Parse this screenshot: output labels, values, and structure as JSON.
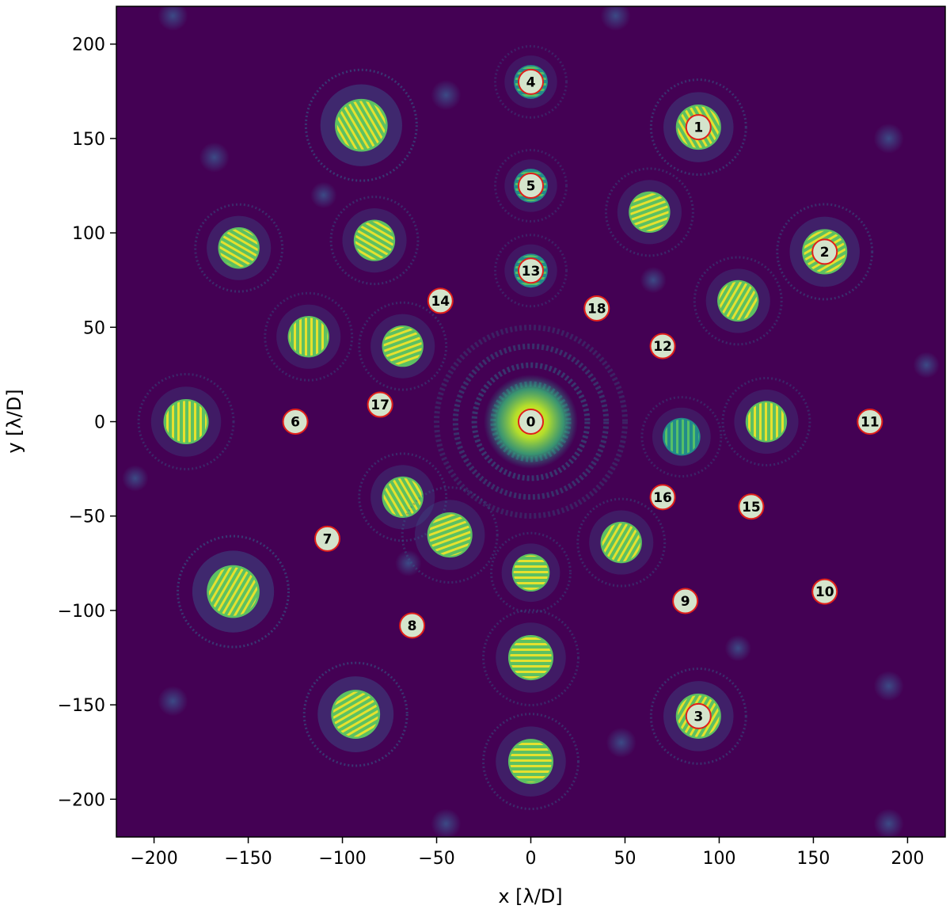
{
  "chart_data": {
    "type": "heatmap",
    "title": "",
    "xlabel": "x [λ/D]",
    "ylabel": "y [λ/D]",
    "xlim": [
      -220,
      220
    ],
    "ylim": [
      -220,
      220
    ],
    "xticks": [
      -200,
      -150,
      -100,
      -50,
      0,
      50,
      100,
      150,
      200
    ],
    "yticks": [
      -200,
      -150,
      -100,
      -50,
      0,
      50,
      100,
      150,
      200
    ],
    "xtick_labels": [
      "−200",
      "−150",
      "−100",
      "−50",
      "0",
      "50",
      "100",
      "150",
      "200"
    ],
    "ytick_labels": [
      "−200",
      "−150",
      "−100",
      "−50",
      "0",
      "50",
      "100",
      "150",
      "200"
    ],
    "colormap": "viridis",
    "grid": false,
    "background_color": "#440154",
    "marker_fill": "#d4e4cc",
    "marker_edge": "#e0201a",
    "markers": [
      {
        "label": "0",
        "x": 0,
        "y": 0
      },
      {
        "label": "1",
        "x": 89,
        "y": 156
      },
      {
        "label": "2",
        "x": 156,
        "y": 90
      },
      {
        "label": "3",
        "x": 89,
        "y": -156
      },
      {
        "label": "4",
        "x": 0,
        "y": 180
      },
      {
        "label": "5",
        "x": 0,
        "y": 125
      },
      {
        "label": "6",
        "x": -125,
        "y": 0
      },
      {
        "label": "7",
        "x": -108,
        "y": -62
      },
      {
        "label": "8",
        "x": -63,
        "y": -108
      },
      {
        "label": "9",
        "x": 82,
        "y": -95
      },
      {
        "label": "10",
        "x": 156,
        "y": -90
      },
      {
        "label": "11",
        "x": 180,
        "y": 0
      },
      {
        "label": "12",
        "x": 70,
        "y": 40
      },
      {
        "label": "13",
        "x": 0,
        "y": 80
      },
      {
        "label": "14",
        "x": -48,
        "y": 64
      },
      {
        "label": "15",
        "x": 117,
        "y": -45
      },
      {
        "label": "16",
        "x": 70,
        "y": -40
      },
      {
        "label": "17",
        "x": -80,
        "y": 9
      },
      {
        "label": "18",
        "x": 35,
        "y": 60
      }
    ],
    "bright_spots": [
      {
        "x": -90,
        "y": 157,
        "r": 14,
        "intensity": 0.95,
        "stripe_angle": -30
      },
      {
        "x": -158,
        "y": -90,
        "r": 14,
        "intensity": 0.95,
        "stripe_angle": 30
      },
      {
        "x": -93,
        "y": -155,
        "r": 13,
        "intensity": 0.9,
        "stripe_angle": 60
      },
      {
        "x": 89,
        "y": 156,
        "r": 12,
        "intensity": 0.75,
        "stripe_angle": -30
      },
      {
        "x": 156,
        "y": 90,
        "r": 12,
        "intensity": 0.7,
        "stripe_angle": 60
      },
      {
        "x": 89,
        "y": -156,
        "r": 12,
        "intensity": 0.7,
        "stripe_angle": 30
      },
      {
        "x": -155,
        "y": 92,
        "r": 11,
        "intensity": 0.6,
        "stripe_angle": -60
      },
      {
        "x": -83,
        "y": 96,
        "r": 11,
        "intensity": 0.55,
        "stripe_angle": -60
      },
      {
        "x": -118,
        "y": 45,
        "r": 11,
        "intensity": 0.45,
        "stripe_angle": 0
      },
      {
        "x": -68,
        "y": 40,
        "r": 11,
        "intensity": 0.5,
        "stripe_angle": 70
      },
      {
        "x": -183,
        "y": 0,
        "r": 12,
        "intensity": 0.5,
        "stripe_angle": 0
      },
      {
        "x": -68,
        "y": -40,
        "r": 11,
        "intensity": 0.55,
        "stripe_angle": -30
      },
      {
        "x": -43,
        "y": -60,
        "r": 12,
        "intensity": 0.5,
        "stripe_angle": 70
      },
      {
        "x": 48,
        "y": -64,
        "r": 11,
        "intensity": 0.5,
        "stripe_angle": 30
      },
      {
        "x": 0,
        "y": -80,
        "r": 10,
        "intensity": 0.45,
        "stripe_angle": 90
      },
      {
        "x": 0,
        "y": -125,
        "r": 12,
        "intensity": 0.5,
        "stripe_angle": 90
      },
      {
        "x": 0,
        "y": -180,
        "r": 12,
        "intensity": 0.6,
        "stripe_angle": 90
      },
      {
        "x": 63,
        "y": 111,
        "r": 11,
        "intensity": 0.5,
        "stripe_angle": 70
      },
      {
        "x": 110,
        "y": 64,
        "r": 11,
        "intensity": 0.5,
        "stripe_angle": 30
      },
      {
        "x": 80,
        "y": -8,
        "r": 10,
        "intensity": 0.4,
        "stripe_angle": 0
      },
      {
        "x": 125,
        "y": 0,
        "r": 11,
        "intensity": 0.45,
        "stripe_angle": 0
      },
      {
        "x": 0,
        "y": 180,
        "r": 9,
        "intensity": 0.35,
        "stripe_angle": 90
      },
      {
        "x": 0,
        "y": 125,
        "r": 9,
        "intensity": 0.35,
        "stripe_angle": 90
      },
      {
        "x": 0,
        "y": 80,
        "r": 9,
        "intensity": 0.35,
        "stripe_angle": 90
      }
    ],
    "faint_spots": [
      {
        "x": -190,
        "y": 215,
        "r": 8
      },
      {
        "x": 45,
        "y": 215,
        "r": 8
      },
      {
        "x": -45,
        "y": 173,
        "r": 8
      },
      {
        "x": -168,
        "y": 140,
        "r": 8
      },
      {
        "x": 190,
        "y": 150,
        "r": 8
      },
      {
        "x": 190,
        "y": -140,
        "r": 8
      },
      {
        "x": -190,
        "y": -148,
        "r": 8
      },
      {
        "x": 48,
        "y": -170,
        "r": 8
      },
      {
        "x": -45,
        "y": -213,
        "r": 8
      },
      {
        "x": 190,
        "y": -213,
        "r": 8
      },
      {
        "x": 210,
        "y": 30,
        "r": 7
      },
      {
        "x": -210,
        "y": -30,
        "r": 7
      },
      {
        "x": 65,
        "y": 75,
        "r": 7
      },
      {
        "x": -65,
        "y": -75,
        "r": 7
      },
      {
        "x": 110,
        "y": -120,
        "r": 7
      },
      {
        "x": -110,
        "y": 120,
        "r": 7
      }
    ],
    "rings": [
      {
        "r": 20,
        "opacity": 0.5
      },
      {
        "r": 30,
        "opacity": 0.45
      },
      {
        "r": 40,
        "opacity": 0.4
      },
      {
        "r": 50,
        "opacity": 0.28
      }
    ]
  }
}
